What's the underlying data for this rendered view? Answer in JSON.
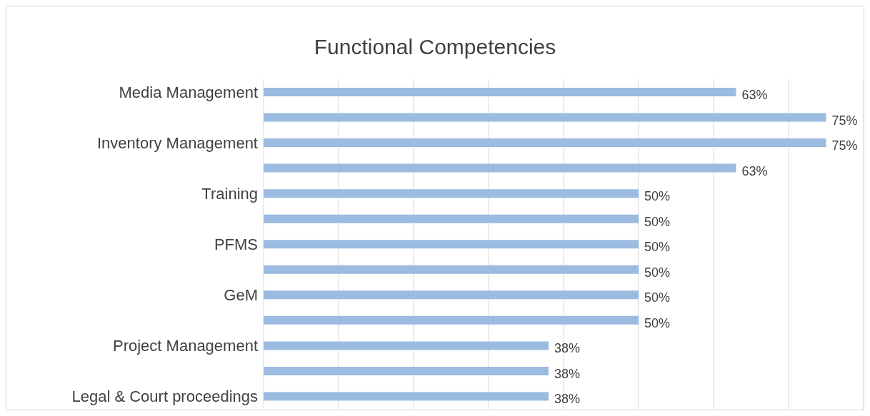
{
  "chart_data": {
    "type": "bar",
    "orientation": "horizontal",
    "title": "Functional Competencies",
    "categories": [
      "Media Management",
      null,
      "Inventory Management",
      null,
      "Training",
      null,
      "PFMS",
      null,
      "GeM",
      null,
      "Project Management",
      null,
      "Legal & Court proceedings"
    ],
    "values": [
      63,
      75,
      75,
      63,
      50,
      50,
      50,
      50,
      50,
      50,
      38,
      38,
      38
    ],
    "value_labels": [
      "63%",
      "75%",
      "75%",
      "63%",
      "50%",
      "50%",
      "50%",
      "50%",
      "50%",
      "50%",
      "38%",
      "38%",
      "38%"
    ],
    "color": "#9bbbe1",
    "xlim": [
      0,
      80
    ],
    "grid": "x",
    "tick_labels": "y",
    "legend": false
  }
}
